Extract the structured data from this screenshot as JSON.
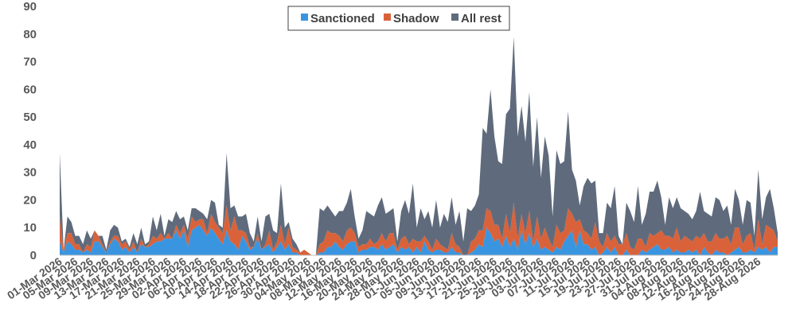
{
  "chart_data": {
    "type": "area",
    "stacked": true,
    "title": "",
    "xlabel": "",
    "ylabel": "",
    "ylim": [
      0,
      90
    ],
    "yticks": [
      0,
      10,
      20,
      30,
      40,
      50,
      60,
      70,
      80,
      90
    ],
    "grid": false,
    "legend_position": "top",
    "x_start": "2026-03-01",
    "x_end": "2026-08-31",
    "xtick_labels": [
      "01-Mar 2026",
      "05-Mar 2026",
      "09-Mar 2026",
      "13-Mar 2026",
      "17-Mar 2026",
      "21-Mar 2026",
      "25-Mar 2026",
      "29-Mar 2026",
      "02-Apr 2026",
      "06-Apr 2026",
      "10-Apr 2026",
      "14-Apr 2026",
      "18-Apr 2026",
      "22-Apr 2026",
      "26-Apr 2026",
      "30-Apr 2026",
      "04-May 2026",
      "08-May 2026",
      "12-May 2026",
      "16-May 2026",
      "20-May 2026",
      "24-May 2026",
      "28-May 2026",
      "01-Jun 2026",
      "05-Jun 2026",
      "09-Jun 2026",
      "13-Jun 2026",
      "17-Jun 2026",
      "21-Jun 2026",
      "25-Jun 2026",
      "29-Jun 2026",
      "03-Jul 2026",
      "07-Jul 2026",
      "11-Jul 2026",
      "15-Jul 2026",
      "19-Jul 2026",
      "23-Jul 2026",
      "27-Jul 2026",
      "31-Jul 2026",
      "04-Aug 2026",
      "08-Aug 2026",
      "12-Aug 2026",
      "16-Aug 2026",
      "20-Aug 2026",
      "24-Aug 2026",
      "28-Aug 2026"
    ],
    "series": [
      {
        "name": "Sanctioned",
        "color": "#3a95e0",
        "values": [
          5,
          1,
          5,
          4,
          2,
          2,
          1,
          2,
          1,
          5,
          5,
          3,
          1,
          4,
          6,
          5,
          2,
          3,
          1,
          3,
          1,
          4,
          3,
          3,
          4,
          5,
          5,
          6,
          6,
          6,
          9,
          6,
          9,
          3,
          9,
          10,
          11,
          9,
          7,
          10,
          8,
          6,
          4,
          9,
          5,
          4,
          2,
          7,
          5,
          2,
          3,
          6,
          2,
          3,
          4,
          1,
          3,
          5,
          2,
          4,
          1,
          1,
          0,
          0,
          0,
          0,
          0,
          1,
          1,
          3,
          3,
          5,
          3,
          2,
          4,
          5,
          5,
          1,
          2,
          2,
          3,
          3,
          2,
          4,
          2,
          3,
          4,
          1,
          3,
          2,
          3,
          1,
          3,
          1,
          5,
          2,
          1,
          2,
          2,
          1,
          1,
          3,
          1,
          1,
          0,
          0,
          1,
          2,
          4,
          3,
          10,
          8,
          5,
          6,
          3,
          7,
          3,
          6,
          2,
          9,
          4,
          8,
          3,
          6,
          2,
          3,
          2,
          1,
          3,
          2,
          5,
          7,
          9,
          3,
          9,
          4,
          4,
          2,
          3,
          0,
          1,
          3,
          1,
          3,
          0,
          0,
          2,
          0,
          0,
          0,
          2,
          1,
          2,
          3,
          4,
          2,
          2,
          3,
          1,
          2,
          1,
          1,
          2,
          1,
          2,
          0,
          3,
          1,
          0,
          2,
          1,
          1,
          0,
          1,
          2,
          3,
          1,
          1,
          2,
          1,
          3,
          2,
          3,
          1,
          3,
          3
        ]
      },
      {
        "name": "Shadow",
        "color": "#d9623a",
        "values": [
          9,
          1,
          3,
          4,
          2,
          2,
          0,
          2,
          2,
          4,
          2,
          1,
          0,
          1,
          1,
          2,
          2,
          2,
          1,
          2,
          0,
          2,
          0,
          1,
          3,
          1,
          3,
          0,
          2,
          0,
          2,
          2,
          2,
          3,
          5,
          2,
          2,
          4,
          1,
          5,
          4,
          4,
          4,
          9,
          4,
          10,
          7,
          2,
          3,
          1,
          0,
          2,
          0,
          1,
          5,
          1,
          2,
          6,
          2,
          6,
          2,
          1,
          1,
          2,
          1,
          0,
          0,
          3,
          4,
          6,
          5,
          3,
          4,
          3,
          5,
          5,
          3,
          2,
          2,
          2,
          3,
          1,
          3,
          4,
          3,
          5,
          4,
          1,
          3,
          5,
          1,
          5,
          2,
          4,
          2,
          3,
          1,
          4,
          2,
          2,
          1,
          5,
          3,
          2,
          0,
          0,
          4,
          4,
          5,
          6,
          7,
          8,
          6,
          5,
          3,
          8,
          5,
          13,
          4,
          6,
          4,
          8,
          2,
          8,
          4,
          7,
          4,
          2,
          8,
          6,
          4,
          10,
          6,
          9,
          4,
          5,
          4,
          4,
          9,
          5,
          2,
          5,
          4,
          4,
          4,
          4,
          6,
          3,
          2,
          6,
          4,
          2,
          6,
          4,
          4,
          7,
          5,
          4,
          5,
          8,
          4,
          6,
          4,
          4,
          5,
          6,
          5,
          4,
          5,
          6,
          5,
          5,
          7,
          3,
          8,
          7,
          3,
          6,
          6,
          1,
          10,
          2,
          8,
          9,
          6,
          2
        ]
      },
      {
        "name": "All rest",
        "color": "#5f6b7c",
        "values": [
          23,
          0,
          6,
          4,
          3,
          3,
          3,
          5,
          3,
          0,
          0,
          3,
          1,
          4,
          4,
          3,
          1,
          1,
          1,
          3,
          3,
          4,
          1,
          1,
          7,
          3,
          7,
          1,
          5,
          6,
          5,
          5,
          3,
          3,
          3,
          5,
          3,
          2,
          5,
          5,
          7,
          1,
          2,
          19,
          8,
          4,
          5,
          5,
          7,
          5,
          2,
          6,
          3,
          10,
          6,
          7,
          3,
          15,
          6,
          2,
          3,
          2,
          0,
          0,
          0,
          0,
          0,
          13,
          11,
          9,
          8,
          6,
          9,
          11,
          10,
          14,
          6,
          3,
          5,
          12,
          9,
          10,
          13,
          13,
          10,
          8,
          9,
          3,
          10,
          13,
          11,
          20,
          5,
          12,
          6,
          11,
          8,
          14,
          6,
          12,
          10,
          13,
          7,
          13,
          5,
          17,
          11,
          12,
          13,
          37,
          27,
          44,
          32,
          23,
          27,
          36,
          45,
          60,
          37,
          39,
          33,
          43,
          27,
          36,
          22,
          33,
          30,
          11,
          27,
          25,
          25,
          35,
          16,
          15,
          5,
          16,
          20,
          20,
          15,
          3,
          5,
          11,
          12,
          18,
          3,
          0,
          11,
          13,
          10,
          19,
          5,
          12,
          15,
          16,
          19,
          12,
          4,
          14,
          11,
          11,
          12,
          9,
          9,
          8,
          9,
          17,
          8,
          10,
          9,
          13,
          14,
          10,
          11,
          7,
          14,
          10,
          7,
          13,
          11,
          5,
          18,
          9,
          10,
          14,
          8,
          3
        ]
      }
    ]
  }
}
